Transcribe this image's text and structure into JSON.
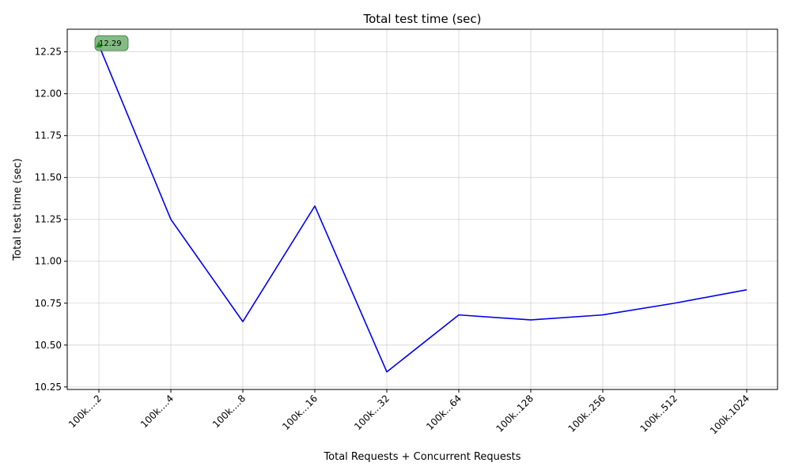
{
  "chart_data": {
    "type": "line",
    "title": "Total test time (sec)",
    "xlabel": "Total Requests + Concurrent Requests",
    "ylabel": "Total test time (sec)",
    "categories": [
      "100k....2",
      "100k....4",
      "100k....8",
      "100k...16",
      "100k...32",
      "100k...64",
      "100k..128",
      "100k..256",
      "100k..512",
      "100k.1024"
    ],
    "series": [
      {
        "values": [
          12.29,
          11.25,
          10.64,
          11.33,
          10.34,
          10.68,
          10.65,
          10.68,
          10.75,
          10.83
        ],
        "color": "#0000ee"
      }
    ],
    "ylim": [
      10.235,
      12.385
    ],
    "yticks": [
      10.25,
      10.5,
      10.75,
      11.0,
      11.25,
      11.5,
      11.75,
      12.0,
      12.25
    ],
    "yticklabels": [
      "10.25",
      "10.50",
      "10.75",
      "11.00",
      "11.25",
      "11.50",
      "11.75",
      "12.00",
      "12.25"
    ],
    "grid": true,
    "annotation": {
      "category_index": 0,
      "value": 12.29,
      "text": "12.29",
      "marker_color": "#228b22",
      "box_color": "#7cb87c"
    }
  }
}
